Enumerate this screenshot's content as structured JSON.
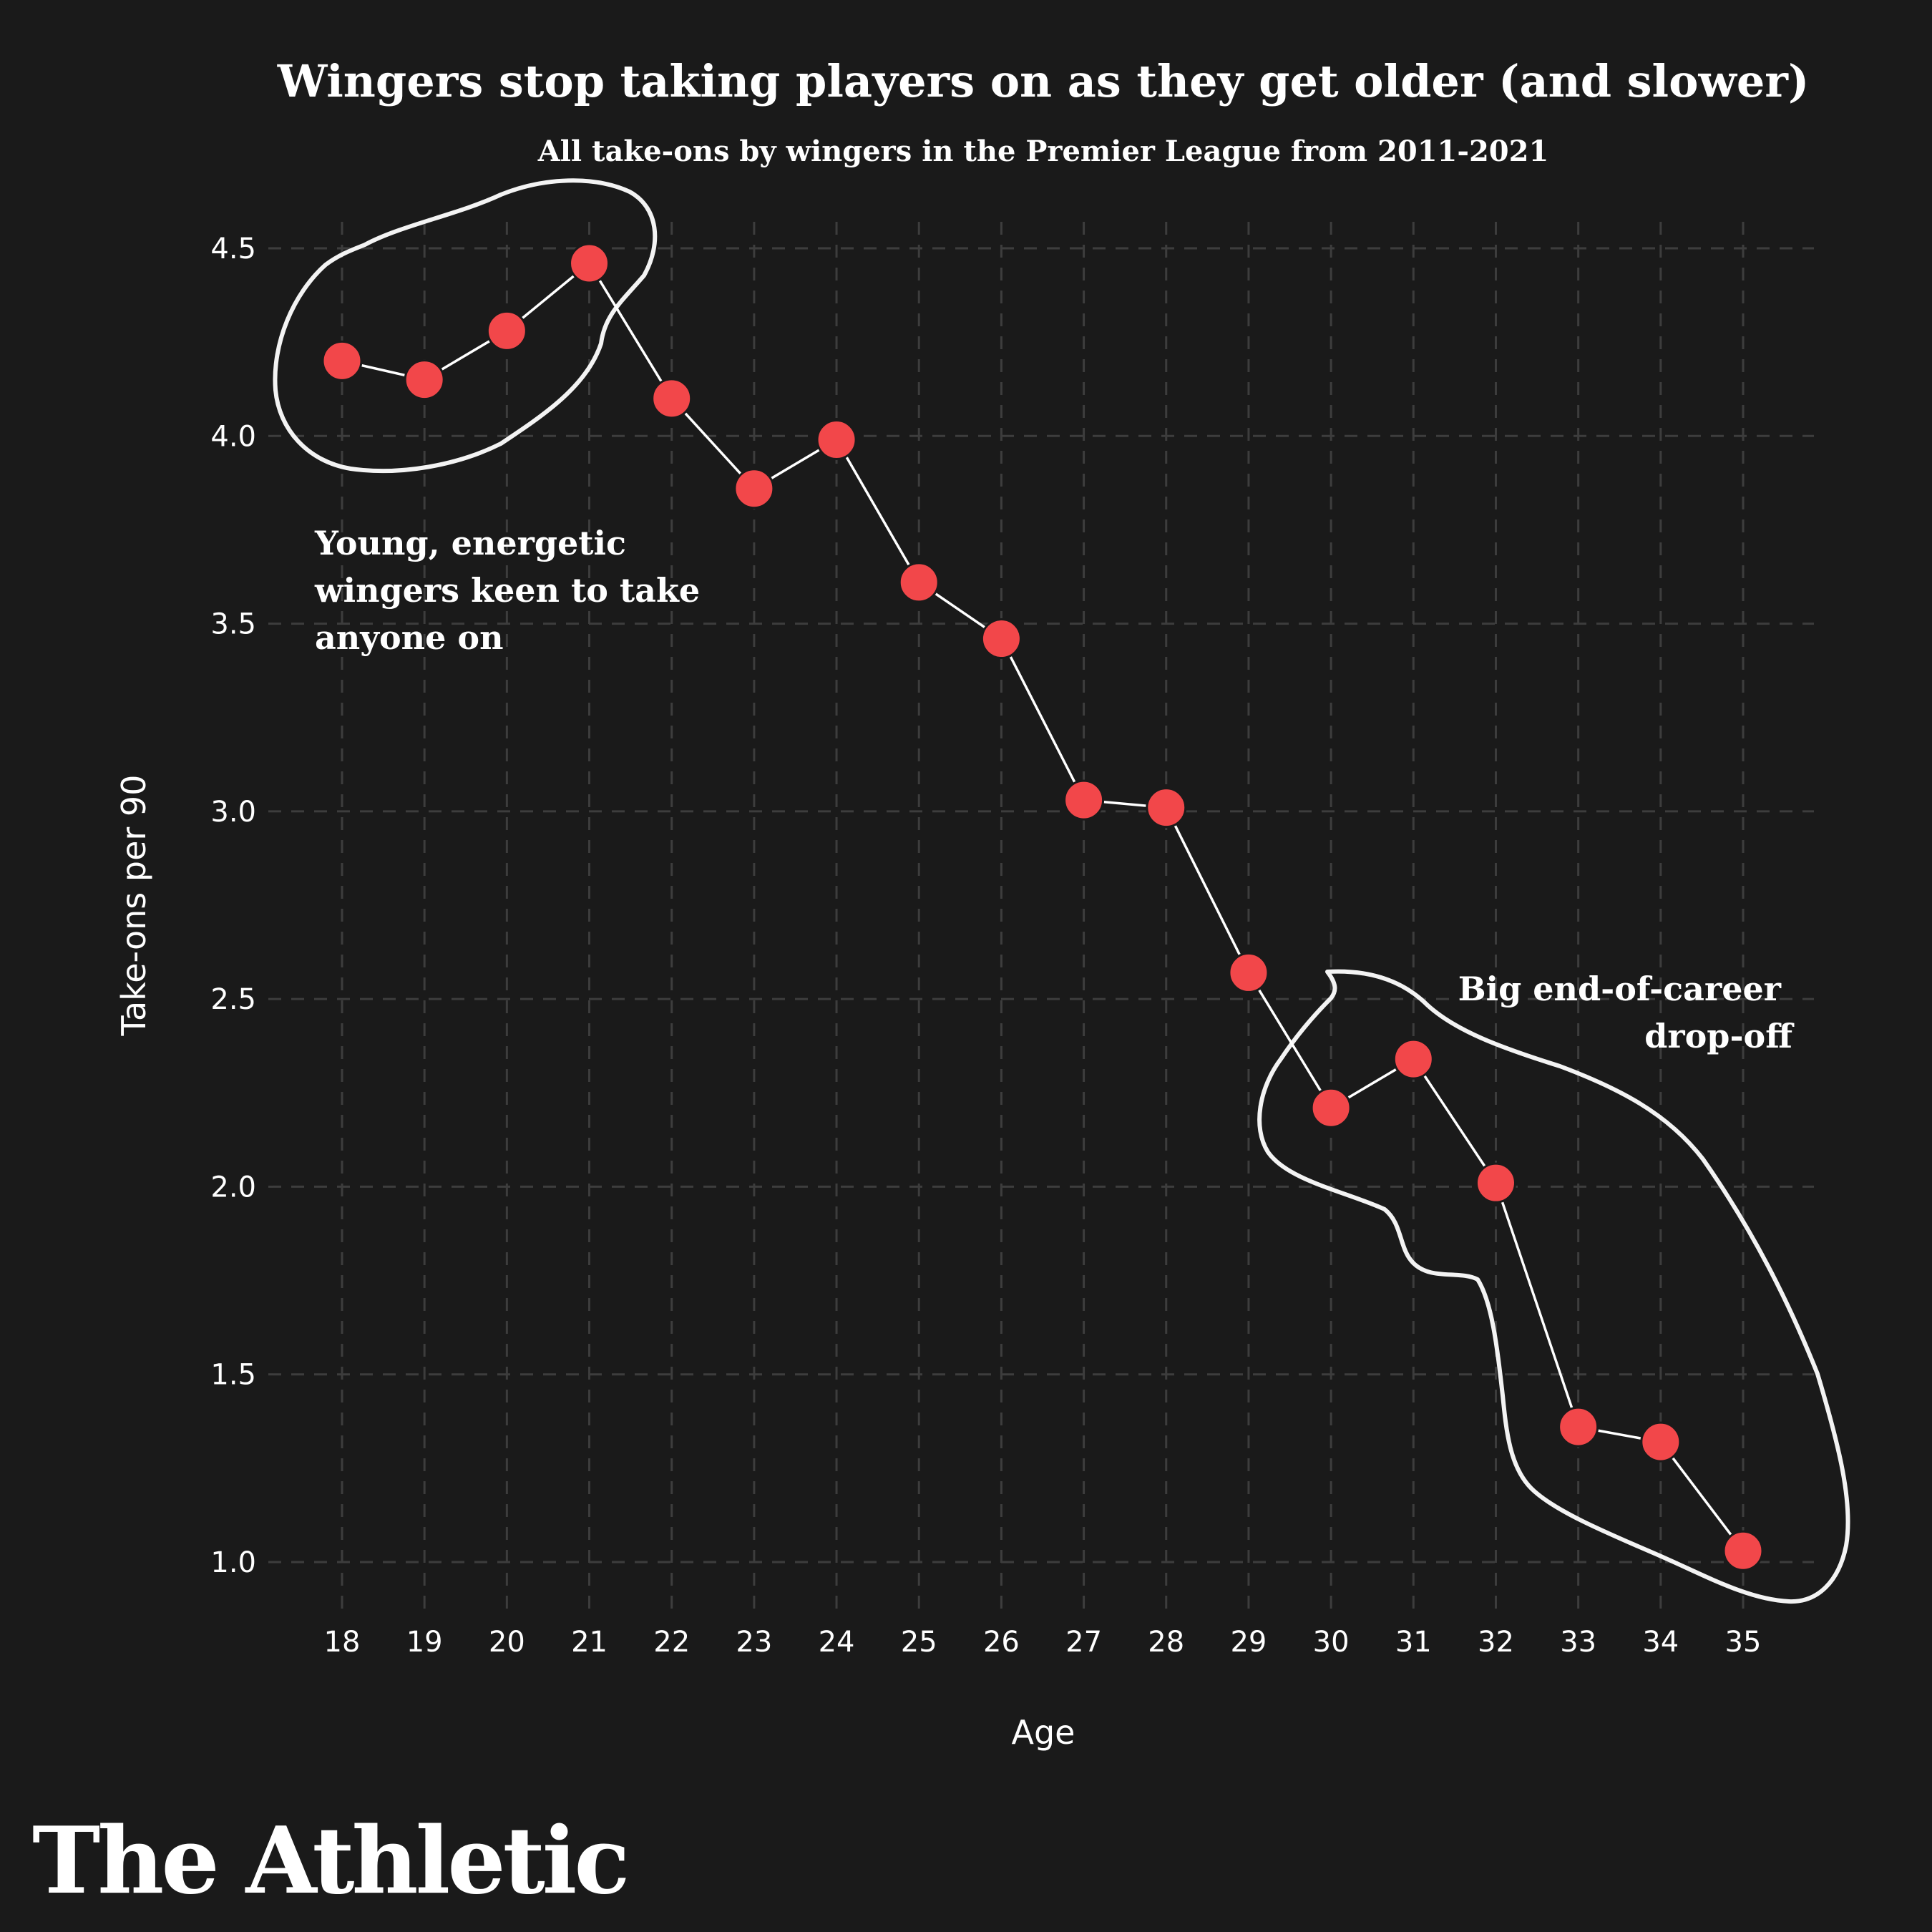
{
  "colors": {
    "background": "#1a1a1a",
    "point": "#f2474a",
    "line": "#ffffff",
    "grid": "#3d3d3d",
    "text": "#ffffff"
  },
  "brand": "The Athletic",
  "chart_data": {
    "type": "line",
    "title": "Wingers stop taking players on as they get older (and slower)",
    "subtitle": "All take-ons by wingers in the Premier League from 2011-2021",
    "xlabel": "Age",
    "ylabel": "Take-ons per 90",
    "xlim": [
      17.8,
      35.8
    ],
    "ylim": [
      0.9,
      4.6
    ],
    "x_ticks": [
      18,
      19,
      20,
      21,
      22,
      23,
      24,
      25,
      26,
      27,
      28,
      29,
      30,
      31,
      32,
      33,
      34,
      35
    ],
    "y_ticks": [
      1.0,
      1.5,
      2.0,
      2.5,
      3.0,
      3.5,
      4.0,
      4.5
    ],
    "y_tick_labels": [
      "1.0",
      "1.5",
      "2.0",
      "2.5",
      "3.0",
      "3.5",
      "4.0",
      "4.5"
    ],
    "grid": true,
    "series": [
      {
        "name": "Take-ons per 90",
        "x": [
          18,
          19,
          20,
          21,
          22,
          23,
          24,
          25,
          26,
          27,
          28,
          29,
          30,
          31,
          32,
          33,
          34,
          35
        ],
        "values": [
          4.2,
          4.15,
          4.28,
          4.46,
          4.1,
          3.86,
          3.99,
          3.61,
          3.46,
          3.03,
          3.01,
          2.57,
          2.21,
          2.34,
          2.01,
          1.36,
          1.32,
          1.03
        ]
      }
    ],
    "annotations": [
      {
        "text_lines": [
          "Young, energetic",
          "wingers keen to take",
          "anyone on"
        ],
        "position": "top-left"
      },
      {
        "text_lines": [
          "Big end-of-career",
          "drop-off"
        ],
        "position": "bottom-right"
      }
    ]
  }
}
